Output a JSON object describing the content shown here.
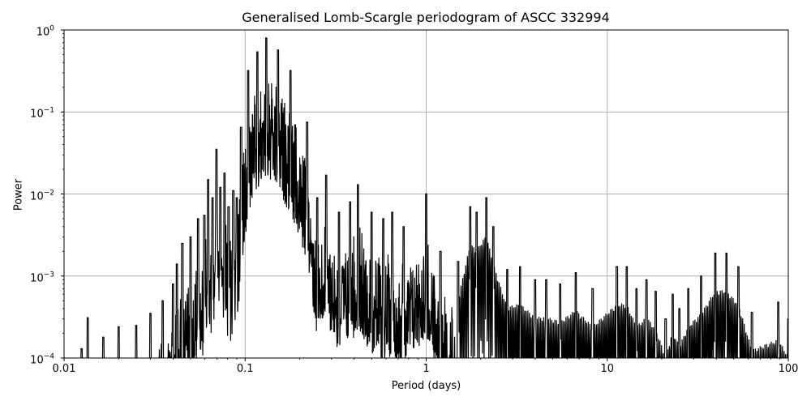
{
  "chart_data": {
    "type": "line",
    "title": "Generalised Lomb-Scargle periodogram of ASCC 332994",
    "xlabel": "Period (days)",
    "ylabel": "Power",
    "xscale": "log",
    "yscale": "log",
    "xlim": [
      0.01,
      100
    ],
    "ylim": [
      0.0001,
      1
    ],
    "grid": true,
    "legend": null,
    "line_color": "#000000",
    "grid_color": "#b0b0b0",
    "x_ticks": [
      {
        "value": 0.01,
        "label": "0.01"
      },
      {
        "value": 0.1,
        "label": "0.1"
      },
      {
        "value": 1,
        "label": "1"
      },
      {
        "value": 10,
        "label": "10"
      },
      {
        "value": 100,
        "label": "100"
      }
    ],
    "y_ticks": [
      {
        "value": 0.0001,
        "base": "10",
        "exp": "−4"
      },
      {
        "value": 0.001,
        "base": "10",
        "exp": "−3"
      },
      {
        "value": 0.01,
        "base": "10",
        "exp": "−2"
      },
      {
        "value": 0.1,
        "base": "10",
        "exp": "−1"
      },
      {
        "value": 1,
        "base": "10",
        "exp": "0"
      }
    ],
    "peaks": [
      {
        "period": 0.0125,
        "power": 0.00013
      },
      {
        "period": 0.0135,
        "power": 0.00031
      },
      {
        "period": 0.0165,
        "power": 0.00018
      },
      {
        "period": 0.02,
        "power": 0.00024
      },
      {
        "period": 0.025,
        "power": 0.00025
      },
      {
        "period": 0.03,
        "power": 0.00035
      },
      {
        "period": 0.035,
        "power": 0.0005
      },
      {
        "period": 0.04,
        "power": 0.0008
      },
      {
        "period": 0.042,
        "power": 0.0014
      },
      {
        "period": 0.045,
        "power": 0.0025
      },
      {
        "period": 0.05,
        "power": 0.003
      },
      {
        "period": 0.055,
        "power": 0.005
      },
      {
        "period": 0.0595,
        "power": 0.0055
      },
      {
        "period": 0.0625,
        "power": 0.015
      },
      {
        "period": 0.066,
        "power": 0.009
      },
      {
        "period": 0.0695,
        "power": 0.035
      },
      {
        "period": 0.073,
        "power": 0.012
      },
      {
        "period": 0.077,
        "power": 0.018
      },
      {
        "period": 0.081,
        "power": 0.007
      },
      {
        "period": 0.086,
        "power": 0.011
      },
      {
        "period": 0.09,
        "power": 0.009
      },
      {
        "period": 0.095,
        "power": 0.065
      },
      {
        "period": 0.104,
        "power": 0.32
      },
      {
        "period": 0.117,
        "power": 0.54
      },
      {
        "period": 0.131,
        "power": 0.8
      },
      {
        "period": 0.152,
        "power": 0.57
      },
      {
        "period": 0.178,
        "power": 0.32
      },
      {
        "period": 0.22,
        "power": 0.075
      },
      {
        "period": 0.25,
        "power": 0.009
      },
      {
        "period": 0.28,
        "power": 0.017
      },
      {
        "period": 0.33,
        "power": 0.006
      },
      {
        "period": 0.38,
        "power": 0.008
      },
      {
        "period": 0.42,
        "power": 0.013
      },
      {
        "period": 0.5,
        "power": 0.006
      },
      {
        "period": 0.58,
        "power": 0.005
      },
      {
        "period": 0.65,
        "power": 0.006
      },
      {
        "period": 0.75,
        "power": 0.004
      },
      {
        "period": 1.0,
        "power": 0.01
      },
      {
        "period": 1.2,
        "power": 0.002
      },
      {
        "period": 1.5,
        "power": 0.0015
      },
      {
        "period": 1.75,
        "power": 0.007
      },
      {
        "period": 1.9,
        "power": 0.006
      },
      {
        "period": 2.15,
        "power": 0.009
      },
      {
        "period": 2.35,
        "power": 0.004
      },
      {
        "period": 2.8,
        "power": 0.0012
      },
      {
        "period": 3.3,
        "power": 0.0013
      },
      {
        "period": 4.0,
        "power": 0.0009
      },
      {
        "period": 4.6,
        "power": 0.0009
      },
      {
        "period": 5.5,
        "power": 0.0008
      },
      {
        "period": 6.7,
        "power": 0.0011
      },
      {
        "period": 8.3,
        "power": 0.0007
      },
      {
        "period": 11.3,
        "power": 0.0013
      },
      {
        "period": 12.8,
        "power": 0.0013
      },
      {
        "period": 14.5,
        "power": 0.0007
      },
      {
        "period": 16.5,
        "power": 0.0009
      },
      {
        "period": 18.5,
        "power": 0.00065
      },
      {
        "period": 21.0,
        "power": 0.0003
      },
      {
        "period": 23.0,
        "power": 0.0006
      },
      {
        "period": 25.0,
        "power": 0.0004
      },
      {
        "period": 28.0,
        "power": 0.0007
      },
      {
        "period": 33.0,
        "power": 0.001
      },
      {
        "period": 39.5,
        "power": 0.0019
      },
      {
        "period": 45.5,
        "power": 0.0019
      },
      {
        "period": 53.0,
        "power": 0.0013
      },
      {
        "period": 63.0,
        "power": 0.00036
      },
      {
        "period": 88.0,
        "power": 0.00048
      },
      {
        "period": 100.0,
        "power": 0.0003
      }
    ]
  }
}
